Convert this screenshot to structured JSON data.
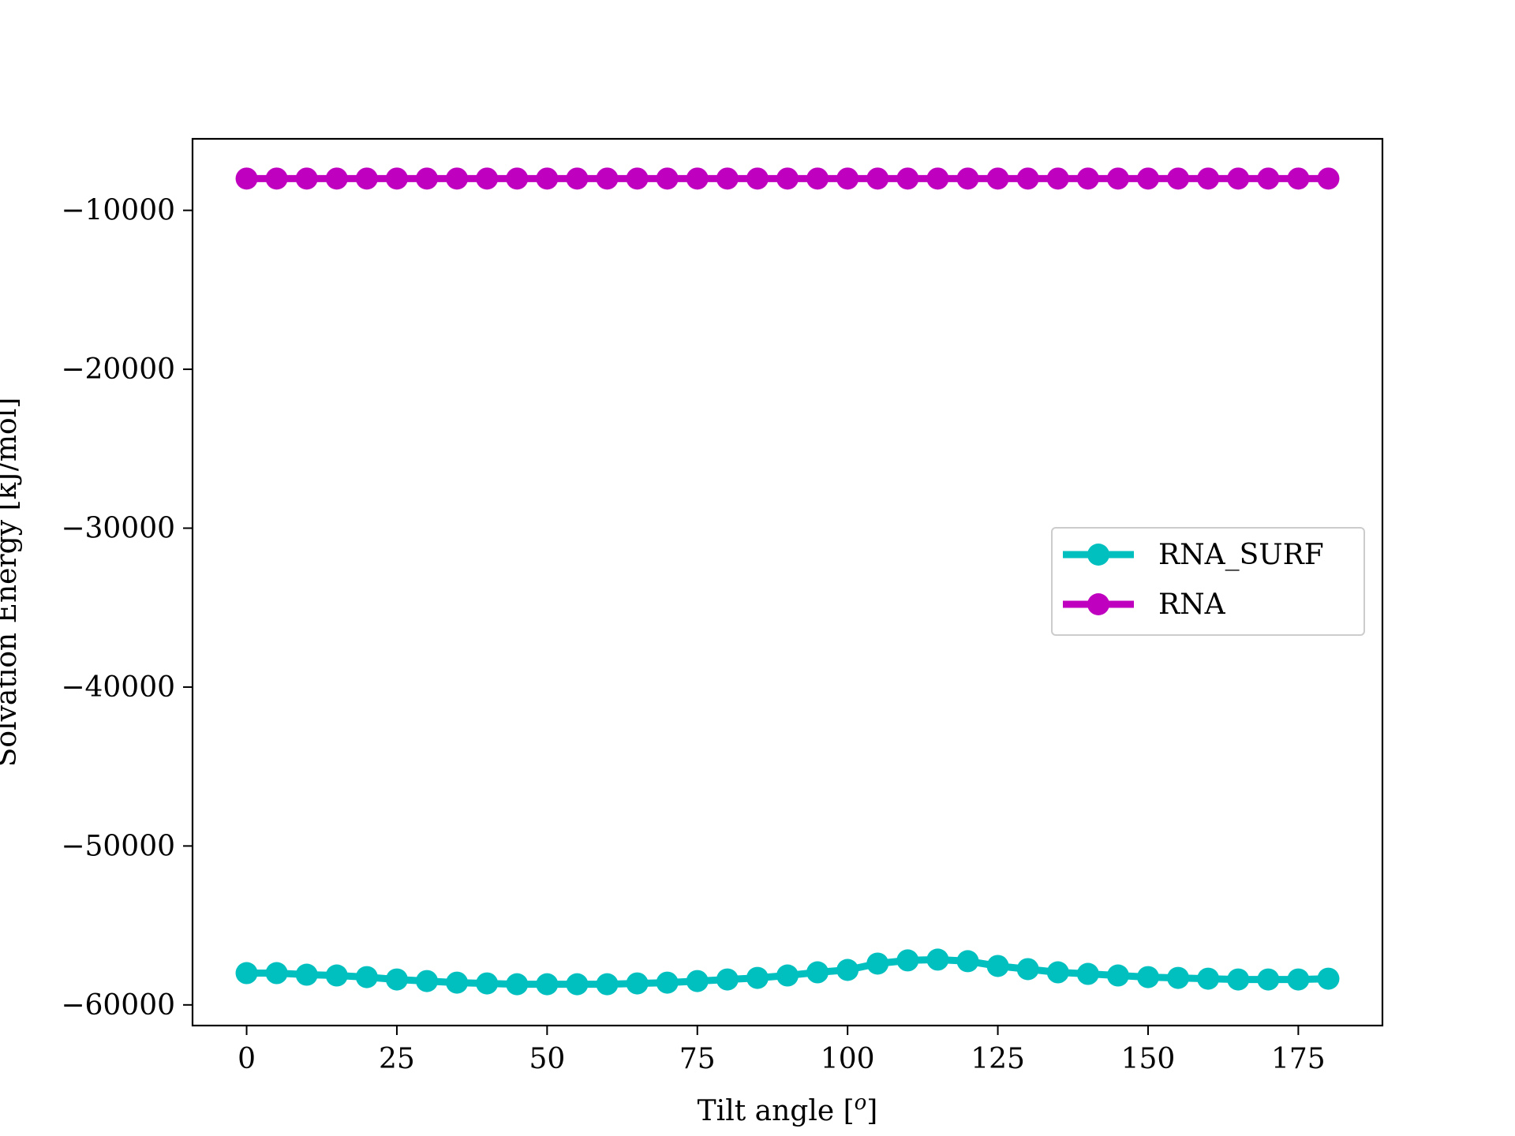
{
  "chart_data": {
    "type": "line",
    "title": "",
    "xlabel": "Tilt angle [",
    "xlabel_superscript": "o",
    "xlabel_suffix": "]",
    "ylabel": "Solvation Energy [kJ/mol]",
    "xlim": [
      -9,
      189
    ],
    "ylim": [
      -61300,
      -5500
    ],
    "xticks": [
      0,
      25,
      50,
      75,
      100,
      125,
      150,
      175
    ],
    "xtick_labels": [
      "0",
      "25",
      "50",
      "75",
      "100",
      "125",
      "150",
      "175"
    ],
    "yticks": [
      -10000,
      -20000,
      -30000,
      -40000,
      -50000,
      -60000
    ],
    "ytick_labels": [
      "−10000",
      "−20000",
      "−30000",
      "−40000",
      "−50000",
      "−60000"
    ],
    "grid": false,
    "legend_position": "center-right",
    "x": [
      0,
      5,
      10,
      15,
      20,
      25,
      30,
      35,
      40,
      45,
      50,
      55,
      60,
      65,
      70,
      75,
      80,
      85,
      90,
      95,
      100,
      105,
      110,
      115,
      120,
      125,
      130,
      135,
      140,
      145,
      150,
      155,
      160,
      165,
      170,
      175,
      180
    ],
    "series": [
      {
        "name": "RNA_SURF",
        "color": "#00bfbf",
        "values": [
          -58000,
          -58000,
          -58100,
          -58150,
          -58250,
          -58400,
          -58500,
          -58600,
          -58650,
          -58700,
          -58700,
          -58700,
          -58700,
          -58650,
          -58600,
          -58500,
          -58400,
          -58300,
          -58150,
          -57950,
          -57800,
          -57400,
          -57200,
          -57150,
          -57250,
          -57550,
          -57750,
          -57950,
          -58050,
          -58150,
          -58250,
          -58300,
          -58350,
          -58400,
          -58400,
          -58400,
          -58350
        ]
      },
      {
        "name": "RNA",
        "color": "#bf00bf",
        "values": [
          -8000,
          -8000,
          -8000,
          -8000,
          -8000,
          -8000,
          -8000,
          -8000,
          -8000,
          -8000,
          -8000,
          -8000,
          -8000,
          -8000,
          -8000,
          -8000,
          -8000,
          -8000,
          -8000,
          -8000,
          -8000,
          -8000,
          -8000,
          -8000,
          -8000,
          -8000,
          -8000,
          -8000,
          -8000,
          -8000,
          -8000,
          -8000,
          -8000,
          -8000,
          -8000,
          -8000,
          -8000
        ]
      }
    ]
  }
}
